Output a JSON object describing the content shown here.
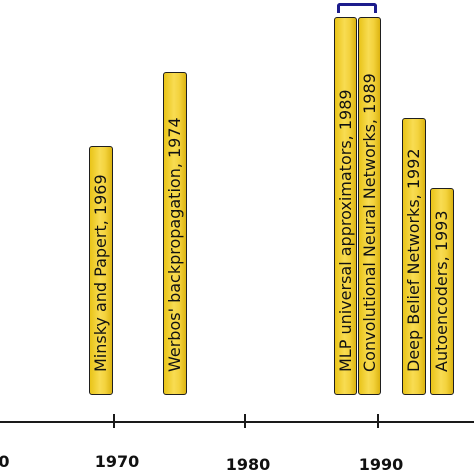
{
  "events": [
    {
      "text": "Minsky and Papert, 1969"
    },
    {
      "text": "Werbos' backpropagation, 1974"
    },
    {
      "text": "MLP universal approximators, 1989"
    },
    {
      "text": "Convolutional Neural Networks, 1989"
    },
    {
      "text": "Deep Belief Networks, 1992"
    },
    {
      "text": "Autoencoders, 1993"
    }
  ],
  "axis": {
    "year_labels": [
      "0",
      "1970",
      "1980",
      "1990"
    ]
  },
  "colors": {
    "event_fill": "#f3d23c",
    "event_border": "#1f1f1f",
    "bracket": "#1c1c8c",
    "axis": "#1a1a1a"
  }
}
